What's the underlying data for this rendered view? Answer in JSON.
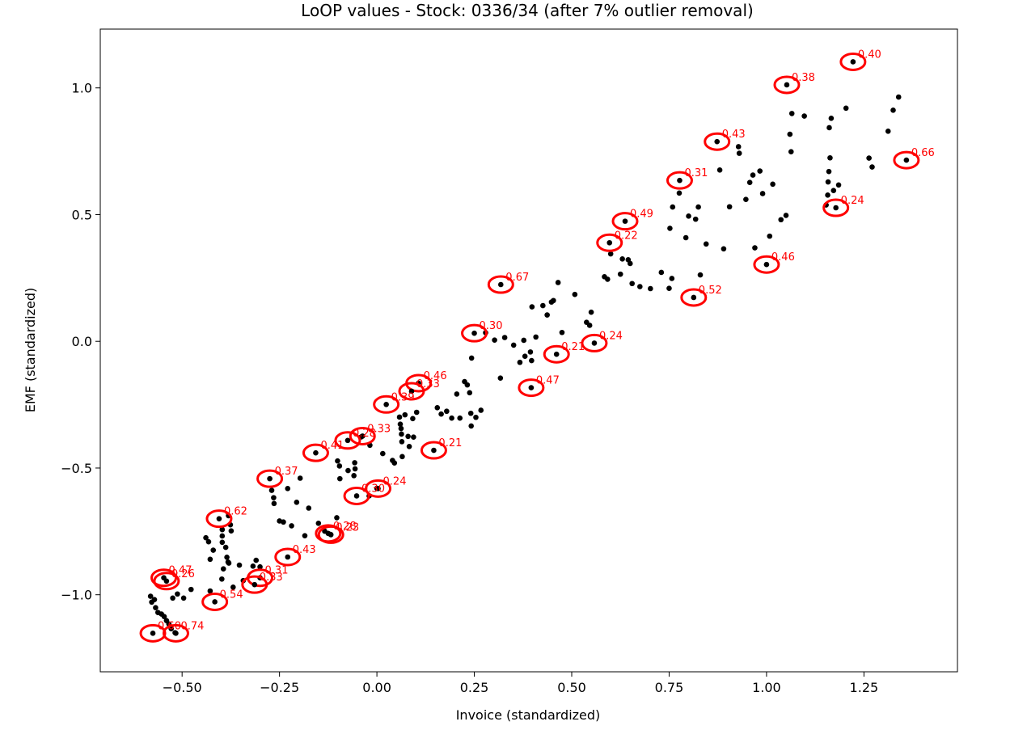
{
  "chart_data": {
    "type": "scatter",
    "title": "LoOP values - Stock: 0336/34 (after 7% outlier removal)",
    "xlabel": "Invoice (standardized)",
    "ylabel": "EMF (standardized)",
    "xlim": [
      -0.71,
      1.49
    ],
    "ylim": [
      -1.304,
      1.232
    ],
    "xticks": [
      -0.5,
      -0.25,
      0.0,
      0.25,
      0.5,
      0.75,
      1.0,
      1.25
    ],
    "xtick_labels": [
      "−0.50",
      "−0.25",
      "0.00",
      "0.25",
      "0.50",
      "0.75",
      "1.00",
      "1.25"
    ],
    "yticks": [
      -1.0,
      -0.5,
      0.0,
      0.5,
      1.0
    ],
    "ytick_labels": [
      "−1.0",
      "−0.5",
      "0.0",
      "0.5",
      "1.0"
    ],
    "grid": false,
    "point_color": "#000000",
    "outlier_marker_color": "#ff0000",
    "annotation_color": "#ff0000",
    "points": [
      {
        "x": -0.581,
        "y": -1.006
      },
      {
        "x": -0.578,
        "y": -1.029
      },
      {
        "x": -0.571,
        "y": -1.019
      },
      {
        "x": -0.568,
        "y": -1.051
      },
      {
        "x": -0.562,
        "y": -1.07
      },
      {
        "x": -0.553,
        "y": -1.076
      },
      {
        "x": -0.546,
        "y": -1.086
      },
      {
        "x": -0.54,
        "y": -1.102
      },
      {
        "x": -0.534,
        "y": -1.115
      },
      {
        "x": -0.528,
        "y": -1.134
      },
      {
        "x": -0.518,
        "y": -1.15
      },
      {
        "x": -0.524,
        "y": -1.013
      },
      {
        "x": -0.512,
        "y": -0.997
      },
      {
        "x": -0.496,
        "y": -1.013
      },
      {
        "x": -0.477,
        "y": -0.979
      },
      {
        "x": -0.439,
        "y": -0.775
      },
      {
        "x": -0.432,
        "y": -0.791
      },
      {
        "x": -0.428,
        "y": -0.86
      },
      {
        "x": -0.428,
        "y": -0.985
      },
      {
        "x": -0.42,
        "y": -0.824
      },
      {
        "x": -0.397,
        "y": -0.743
      },
      {
        "x": -0.397,
        "y": -0.768
      },
      {
        "x": -0.397,
        "y": -0.793
      },
      {
        "x": -0.394,
        "y": -0.898
      },
      {
        "x": -0.398,
        "y": -0.938
      },
      {
        "x": -0.388,
        "y": -0.813
      },
      {
        "x": -0.385,
        "y": -0.852
      },
      {
        "x": -0.382,
        "y": -0.871
      },
      {
        "x": -0.38,
        "y": -0.875
      },
      {
        "x": -0.381,
        "y": -0.688
      },
      {
        "x": -0.376,
        "y": -0.724
      },
      {
        "x": -0.374,
        "y": -0.748
      },
      {
        "x": -0.369,
        "y": -0.97
      },
      {
        "x": -0.353,
        "y": -0.883
      },
      {
        "x": -0.343,
        "y": -0.944
      },
      {
        "x": -0.318,
        "y": -0.887
      },
      {
        "x": -0.31,
        "y": -0.864
      },
      {
        "x": -0.3,
        "y": -0.89
      },
      {
        "x": -0.27,
        "y": -0.588
      },
      {
        "x": -0.265,
        "y": -0.617
      },
      {
        "x": -0.264,
        "y": -0.64
      },
      {
        "x": -0.25,
        "y": -0.709
      },
      {
        "x": -0.24,
        "y": -0.713
      },
      {
        "x": -0.229,
        "y": -0.581
      },
      {
        "x": -0.219,
        "y": -0.728
      },
      {
        "x": -0.206,
        "y": -0.635
      },
      {
        "x": -0.197,
        "y": -0.54
      },
      {
        "x": -0.185,
        "y": -0.767
      },
      {
        "x": -0.175,
        "y": -0.658
      },
      {
        "x": -0.15,
        "y": -0.718
      },
      {
        "x": -0.134,
        "y": -0.749
      },
      {
        "x": -0.119,
        "y": -0.762
      },
      {
        "x": -0.103,
        "y": -0.696
      },
      {
        "x": -0.101,
        "y": -0.472
      },
      {
        "x": -0.096,
        "y": -0.492
      },
      {
        "x": -0.095,
        "y": -0.542
      },
      {
        "x": -0.074,
        "y": -0.51
      },
      {
        "x": -0.059,
        "y": -0.53
      },
      {
        "x": -0.057,
        "y": -0.479
      },
      {
        "x": -0.056,
        "y": -0.503
      },
      {
        "x": -0.04,
        "y": -0.377
      },
      {
        "x": -0.018,
        "y": -0.41
      },
      {
        "x": 0.0,
        "y": -0.58
      },
      {
        "x": 0.015,
        "y": -0.443
      },
      {
        "x": -0.02,
        "y": -0.61
      },
      {
        "x": 0.04,
        "y": -0.47
      },
      {
        "x": 0.045,
        "y": -0.48
      },
      {
        "x": 0.058,
        "y": -0.299
      },
      {
        "x": 0.06,
        "y": -0.327
      },
      {
        "x": 0.062,
        "y": -0.344
      },
      {
        "x": 0.063,
        "y": -0.366
      },
      {
        "x": 0.064,
        "y": -0.396
      },
      {
        "x": 0.065,
        "y": -0.455
      },
      {
        "x": 0.072,
        "y": -0.29
      },
      {
        "x": 0.08,
        "y": -0.375
      },
      {
        "x": 0.083,
        "y": -0.415
      },
      {
        "x": 0.092,
        "y": -0.305
      },
      {
        "x": 0.094,
        "y": -0.378
      },
      {
        "x": 0.102,
        "y": -0.28
      },
      {
        "x": 0.155,
        "y": -0.262
      },
      {
        "x": 0.165,
        "y": -0.287
      },
      {
        "x": 0.179,
        "y": -0.276
      },
      {
        "x": 0.192,
        "y": -0.303
      },
      {
        "x": 0.205,
        "y": -0.208
      },
      {
        "x": 0.213,
        "y": -0.303
      },
      {
        "x": 0.225,
        "y": -0.159
      },
      {
        "x": 0.232,
        "y": -0.172
      },
      {
        "x": 0.238,
        "y": -0.203
      },
      {
        "x": 0.241,
        "y": -0.284
      },
      {
        "x": 0.242,
        "y": -0.334
      },
      {
        "x": 0.243,
        "y": -0.066
      },
      {
        "x": 0.254,
        "y": -0.3
      },
      {
        "x": 0.267,
        "y": -0.272
      },
      {
        "x": 0.279,
        "y": 0.034
      },
      {
        "x": 0.302,
        "y": 0.005
      },
      {
        "x": 0.317,
        "y": -0.145
      },
      {
        "x": 0.328,
        "y": 0.015
      },
      {
        "x": 0.351,
        "y": -0.015
      },
      {
        "x": 0.367,
        "y": -0.083
      },
      {
        "x": 0.377,
        "y": 0.004
      },
      {
        "x": 0.38,
        "y": -0.059
      },
      {
        "x": 0.394,
        "y": -0.042
      },
      {
        "x": 0.397,
        "y": -0.076
      },
      {
        "x": 0.398,
        "y": 0.136
      },
      {
        "x": 0.408,
        "y": 0.017
      },
      {
        "x": 0.426,
        "y": 0.141
      },
      {
        "x": 0.437,
        "y": 0.104
      },
      {
        "x": 0.448,
        "y": 0.155
      },
      {
        "x": 0.453,
        "y": 0.161
      },
      {
        "x": 0.465,
        "y": 0.232
      },
      {
        "x": 0.475,
        "y": 0.035
      },
      {
        "x": 0.508,
        "y": 0.185
      },
      {
        "x": 0.538,
        "y": 0.075
      },
      {
        "x": 0.546,
        "y": 0.063
      },
      {
        "x": 0.55,
        "y": 0.115
      },
      {
        "x": 0.584,
        "y": 0.255
      },
      {
        "x": 0.592,
        "y": 0.245
      },
      {
        "x": 0.6,
        "y": 0.345
      },
      {
        "x": 0.625,
        "y": 0.265
      },
      {
        "x": 0.63,
        "y": 0.325
      },
      {
        "x": 0.645,
        "y": 0.322
      },
      {
        "x": 0.65,
        "y": 0.307
      },
      {
        "x": 0.655,
        "y": 0.228
      },
      {
        "x": 0.675,
        "y": 0.216
      },
      {
        "x": 0.702,
        "y": 0.208
      },
      {
        "x": 0.73,
        "y": 0.272
      },
      {
        "x": 0.75,
        "y": 0.209
      },
      {
        "x": 0.752,
        "y": 0.446
      },
      {
        "x": 0.757,
        "y": 0.248
      },
      {
        "x": 0.759,
        "y": 0.53
      },
      {
        "x": 0.776,
        "y": 0.585
      },
      {
        "x": 0.793,
        "y": 0.409
      },
      {
        "x": 0.8,
        "y": 0.494
      },
      {
        "x": 0.818,
        "y": 0.482
      },
      {
        "x": 0.825,
        "y": 0.53
      },
      {
        "x": 0.83,
        "y": 0.262
      },
      {
        "x": 0.845,
        "y": 0.384
      },
      {
        "x": 0.88,
        "y": 0.676
      },
      {
        "x": 0.89,
        "y": 0.365
      },
      {
        "x": 0.905,
        "y": 0.531
      },
      {
        "x": 0.928,
        "y": 0.768
      },
      {
        "x": 0.93,
        "y": 0.742
      },
      {
        "x": 0.947,
        "y": 0.56
      },
      {
        "x": 0.957,
        "y": 0.627
      },
      {
        "x": 0.965,
        "y": 0.656
      },
      {
        "x": 0.97,
        "y": 0.369
      },
      {
        "x": 0.983,
        "y": 0.672
      },
      {
        "x": 0.99,
        "y": 0.583
      },
      {
        "x": 1.008,
        "y": 0.415
      },
      {
        "x": 1.016,
        "y": 0.62
      },
      {
        "x": 1.037,
        "y": 0.48
      },
      {
        "x": 1.05,
        "y": 0.497
      },
      {
        "x": 1.06,
        "y": 0.817
      },
      {
        "x": 1.063,
        "y": 0.748
      },
      {
        "x": 1.065,
        "y": 0.899
      },
      {
        "x": 1.097,
        "y": 0.889
      },
      {
        "x": 1.153,
        "y": 0.538
      },
      {
        "x": 1.157,
        "y": 0.577
      },
      {
        "x": 1.158,
        "y": 0.629
      },
      {
        "x": 1.16,
        "y": 0.67
      },
      {
        "x": 1.161,
        "y": 0.843
      },
      {
        "x": 1.163,
        "y": 0.724
      },
      {
        "x": 1.166,
        "y": 0.88
      },
      {
        "x": 1.172,
        "y": 0.595
      },
      {
        "x": 1.185,
        "y": 0.617
      },
      {
        "x": 1.204,
        "y": 0.92
      },
      {
        "x": 1.263,
        "y": 0.723
      },
      {
        "x": 1.271,
        "y": 0.688
      },
      {
        "x": 1.312,
        "y": 0.829
      },
      {
        "x": 1.325,
        "y": 0.912
      },
      {
        "x": 1.339,
        "y": 0.964
      }
    ],
    "outliers": [
      {
        "x": 1.222,
        "y": 1.103,
        "label": "0.40"
      },
      {
        "x": 1.052,
        "y": 1.012,
        "label": "0.38"
      },
      {
        "x": 0.873,
        "y": 0.788,
        "label": "0.43"
      },
      {
        "x": 1.359,
        "y": 0.715,
        "label": "0.66"
      },
      {
        "x": 0.777,
        "y": 0.635,
        "label": "0.31"
      },
      {
        "x": 1.178,
        "y": 0.527,
        "label": "0.24"
      },
      {
        "x": 0.637,
        "y": 0.474,
        "label": "0.49"
      },
      {
        "x": 0.597,
        "y": 0.389,
        "label": "0.22"
      },
      {
        "x": 1.0,
        "y": 0.303,
        "label": "0.46"
      },
      {
        "x": 0.318,
        "y": 0.224,
        "label": "0.67"
      },
      {
        "x": 0.813,
        "y": 0.173,
        "label": "0.52"
      },
      {
        "x": 0.25,
        "y": 0.032,
        "label": "0.30"
      },
      {
        "x": 0.558,
        "y": -0.007,
        "label": "0.24"
      },
      {
        "x": 0.461,
        "y": -0.051,
        "label": "0.21"
      },
      {
        "x": 0.107,
        "y": -0.165,
        "label": "0.46"
      },
      {
        "x": 0.089,
        "y": -0.197,
        "label": "0.33"
      },
      {
        "x": 0.396,
        "y": -0.183,
        "label": "0.47"
      },
      {
        "x": 0.024,
        "y": -0.249,
        "label": "0.39"
      },
      {
        "x": -0.037,
        "y": -0.374,
        "label": "0.33"
      },
      {
        "x": -0.075,
        "y": -0.391,
        "label": "0.28"
      },
      {
        "x": -0.157,
        "y": -0.44,
        "label": "0.41"
      },
      {
        "x": 0.146,
        "y": -0.43,
        "label": "0.21"
      },
      {
        "x": -0.275,
        "y": -0.542,
        "label": "0.37"
      },
      {
        "x": 0.003,
        "y": -0.581,
        "label": "0.24"
      },
      {
        "x": -0.052,
        "y": -0.61,
        "label": "0.30"
      },
      {
        "x": -0.405,
        "y": -0.7,
        "label": "0.62"
      },
      {
        "x": -0.118,
        "y": -0.763,
        "label": "0.23"
      },
      {
        "x": -0.125,
        "y": -0.758,
        "label": "0.28"
      },
      {
        "x": -0.229,
        "y": -0.851,
        "label": "0.43"
      },
      {
        "x": -0.3,
        "y": -0.933,
        "label": "0.31"
      },
      {
        "x": -0.314,
        "y": -0.96,
        "label": "0.33"
      },
      {
        "x": -0.547,
        "y": -0.933,
        "label": "0.47"
      },
      {
        "x": -0.54,
        "y": -0.946,
        "label": "0.26"
      },
      {
        "x": -0.416,
        "y": -1.028,
        "label": "0.54"
      },
      {
        "x": -0.575,
        "y": -1.152,
        "label": "0.60"
      },
      {
        "x": -0.516,
        "y": -1.152,
        "label": "0.74"
      }
    ]
  }
}
